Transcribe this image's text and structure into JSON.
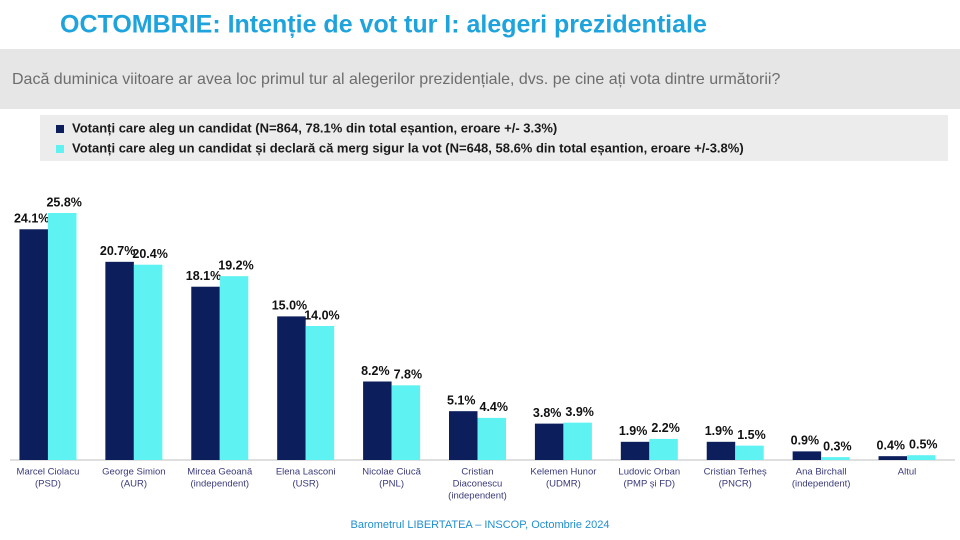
{
  "chart_data": {
    "type": "bar",
    "title": "OCTOMBRIE: Intenție de vot tur I: alegeri prezidentiale",
    "subtitle": "Dacă duminica viitoare ar avea loc primul tur al alegerilor prezidențiale, dvs. pe cine ați vota dintre următorii?",
    "categories": [
      [
        "Marcel Ciolacu",
        "(PSD)"
      ],
      [
        "George Simion",
        "(AUR)"
      ],
      [
        "Mircea Geoană",
        "(independent)"
      ],
      [
        "Elena Lasconi",
        "(USR)"
      ],
      [
        "Nicolae Ciucă",
        "(PNL)"
      ],
      [
        "Cristian",
        "Diaconescu",
        "(independent)"
      ],
      [
        "Kelemen Hunor",
        "(UDMR)"
      ],
      [
        "Ludovic Orban",
        "(PMP și FD)"
      ],
      [
        "Cristian Terheș",
        "(PNCR)"
      ],
      [
        "Ana Birchall",
        "(independent)"
      ],
      [
        "Altul"
      ]
    ],
    "series": [
      {
        "name": "Votanți care aleg un candidat (N=864, 78.1% din total eșantion, eroare +/- 3.3%)",
        "color": "#0c1f5c",
        "values": [
          24.1,
          20.7,
          18.1,
          15.0,
          8.2,
          5.1,
          3.8,
          1.9,
          1.9,
          0.9,
          0.4
        ],
        "value_labels": [
          "24.1%",
          "20.7%",
          "18.1%",
          "15.0%",
          "8.2%",
          "5.1%",
          "3.8%",
          "1.9%",
          "1.9%",
          "0.9%",
          "0.4%"
        ]
      },
      {
        "name": "Votanți care aleg un candidat și declară că merg sigur la vot (N=648, 58.6% din total eșantion, eroare +/-3.8%)",
        "color": "#5ff2f2",
        "values": [
          25.8,
          20.4,
          19.2,
          14.0,
          7.8,
          4.4,
          3.9,
          2.2,
          1.5,
          0.3,
          0.5
        ],
        "value_labels": [
          "25.8%",
          "20.4%",
          "19.2%",
          "14.0%",
          "7.8%",
          "4.4%",
          "3.9%",
          "2.2%",
          "1.5%",
          "0.3%",
          "0.5%"
        ]
      }
    ],
    "source": "Barometrul LIBERTATEA – INSCOP, Octombrie 2024"
  }
}
